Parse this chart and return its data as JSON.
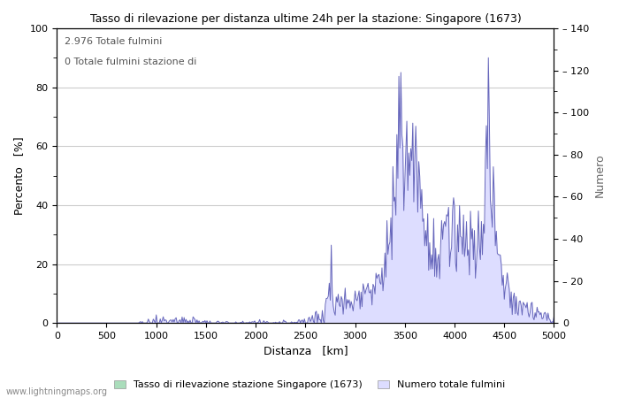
{
  "title": "Tasso di rilevazione per distanza ultime 24h per la stazione: Singapore (1673)",
  "xlabel": "Distanza   [km]",
  "ylabel_left": "Percento   [%]",
  "ylabel_right": "Numero",
  "annotation_line1": "2.976 Totale fulmini",
  "annotation_line2": "0 Totale fulmini stazione di",
  "xlim": [
    0,
    5000
  ],
  "ylim_left": [
    0,
    100
  ],
  "ylim_right": [
    0,
    140
  ],
  "xticks": [
    0,
    500,
    1000,
    1500,
    2000,
    2500,
    3000,
    3500,
    4000,
    4500,
    5000
  ],
  "yticks_left": [
    0,
    20,
    40,
    60,
    80,
    100
  ],
  "yticks_right": [
    0,
    20,
    40,
    60,
    80,
    100,
    120,
    140
  ],
  "legend_green_label": "Tasso di rilevazione stazione Singapore (1673)",
  "legend_blue_label": "Numero totale fulmini",
  "watermark": "www.lightningmaps.org",
  "bg_color": "#ffffff",
  "plot_bg_color": "#ffffff",
  "grid_color": "#cccccc",
  "line_color": "#6666bb",
  "fill_color": "#ddddff",
  "green_fill_color": "#aaddbb"
}
